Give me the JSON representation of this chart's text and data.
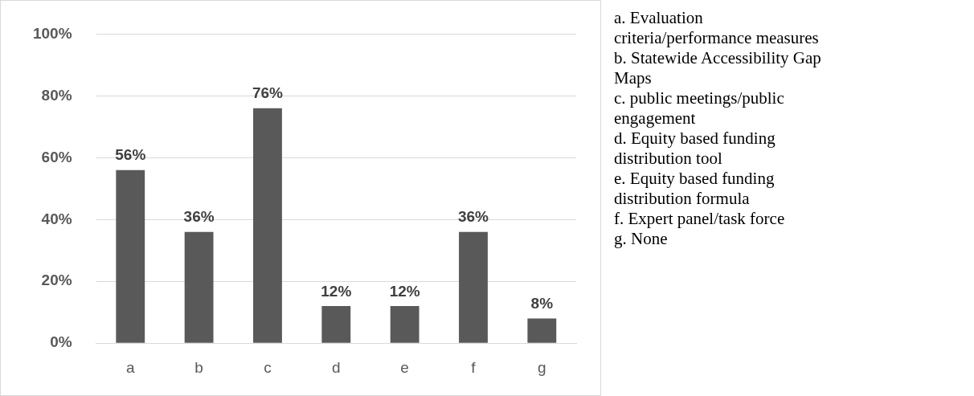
{
  "chart_data": {
    "type": "bar",
    "categories": [
      "a",
      "b",
      "c",
      "d",
      "e",
      "f",
      "g"
    ],
    "values": [
      56,
      36,
      76,
      12,
      12,
      36,
      8
    ],
    "value_labels": [
      "56%",
      "36%",
      "76%",
      "12%",
      "12%",
      "36%",
      "8%"
    ],
    "color": "#595959",
    "ylim": [
      0,
      100
    ],
    "yticks": [
      {
        "value": 0,
        "label": "0%"
      },
      {
        "value": 20,
        "label": "20%"
      },
      {
        "value": 40,
        "label": "40%"
      },
      {
        "value": 60,
        "label": "60%"
      },
      {
        "value": 80,
        "label": "80%"
      },
      {
        "value": 100,
        "label": "100%"
      }
    ],
    "grid": "y",
    "legend": false,
    "annotations": [
      "a. Evaluation criteria/performance measures",
      "b. Statewide Accessibility Gap Maps",
      "c. public meetings/public engagement",
      "d. Equity based funding distribution tool",
      "e. Equity based funding distribution formula",
      "f. Expert panel/task force",
      "g. None"
    ]
  }
}
